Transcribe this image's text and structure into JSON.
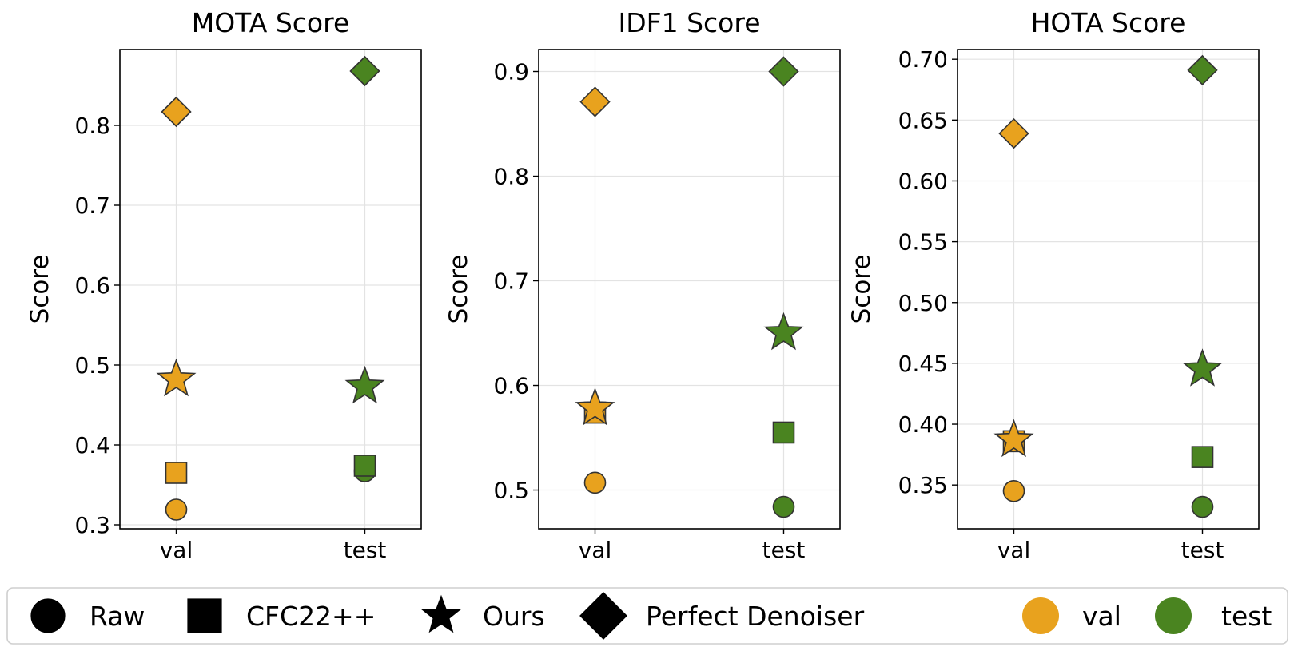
{
  "colors": {
    "val": "#E8A21E",
    "test": "#4A8420",
    "edge": "#333333"
  },
  "chart_data": [
    {
      "type": "scatter",
      "title": "MOTA Score",
      "xlabel": "",
      "ylabel": "Score",
      "categories": [
        "val",
        "test"
      ],
      "ylim": [
        0.295,
        0.895
      ],
      "yticks": [
        0.3,
        0.4,
        0.5,
        0.6,
        0.7,
        0.8
      ],
      "ytick_labels": [
        "0.3",
        "0.4",
        "0.5",
        "0.6",
        "0.7",
        "0.8"
      ],
      "grid": true,
      "series": [
        {
          "name": "Raw",
          "marker": "circle",
          "values": [
            0.319,
            0.367
          ]
        },
        {
          "name": "CFC22++",
          "marker": "square",
          "values": [
            0.365,
            0.374
          ]
        },
        {
          "name": "Ours",
          "marker": "star",
          "values": [
            0.482,
            0.473
          ]
        },
        {
          "name": "Perfect Denoiser",
          "marker": "diamond",
          "values": [
            0.817,
            0.868
          ]
        }
      ]
    },
    {
      "type": "scatter",
      "title": "IDF1 Score",
      "xlabel": "",
      "ylabel": "Score",
      "categories": [
        "val",
        "test"
      ],
      "ylim": [
        0.463,
        0.921
      ],
      "yticks": [
        0.5,
        0.6,
        0.7,
        0.8,
        0.9
      ],
      "ytick_labels": [
        "0.5",
        "0.6",
        "0.7",
        "0.8",
        "0.9"
      ],
      "grid": true,
      "series": [
        {
          "name": "Raw",
          "marker": "circle",
          "values": [
            0.507,
            0.484
          ]
        },
        {
          "name": "CFC22++",
          "marker": "square",
          "values": [
            0.574,
            0.555
          ]
        },
        {
          "name": "Ours",
          "marker": "star",
          "values": [
            0.578,
            0.65
          ]
        },
        {
          "name": "Perfect Denoiser",
          "marker": "diamond",
          "values": [
            0.871,
            0.9
          ]
        }
      ]
    },
    {
      "type": "scatter",
      "title": "HOTA Score",
      "xlabel": "",
      "ylabel": "Score",
      "categories": [
        "val",
        "test"
      ],
      "ylim": [
        0.314,
        0.708
      ],
      "yticks": [
        0.35,
        0.4,
        0.45,
        0.5,
        0.55,
        0.6,
        0.65,
        0.7
      ],
      "ytick_labels": [
        "0.35",
        "0.40",
        "0.45",
        "0.50",
        "0.55",
        "0.60",
        "0.65",
        "0.70"
      ],
      "grid": true,
      "series": [
        {
          "name": "Raw",
          "marker": "circle",
          "values": [
            0.345,
            0.332
          ]
        },
        {
          "name": "CFC22++",
          "marker": "square",
          "values": [
            0.386,
            0.373
          ]
        },
        {
          "name": "Ours",
          "marker": "star",
          "values": [
            0.387,
            0.445
          ]
        },
        {
          "name": "Perfect Denoiser",
          "marker": "diamond",
          "values": [
            0.639,
            0.691
          ]
        }
      ]
    }
  ],
  "legend": {
    "placement": "bottom",
    "markers": [
      {
        "label": "Raw",
        "marker": "circle"
      },
      {
        "label": "CFC22++",
        "marker": "square"
      },
      {
        "label": "Ours",
        "marker": "star"
      },
      {
        "label": "Perfect Denoiser",
        "marker": "diamond"
      }
    ],
    "splits": [
      {
        "label": "val",
        "color_key": "val"
      },
      {
        "label": "test",
        "color_key": "test"
      }
    ]
  }
}
